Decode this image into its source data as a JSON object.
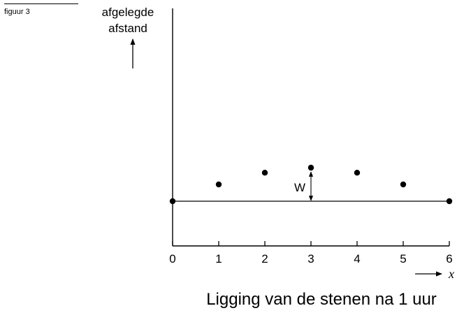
{
  "figure_label": "figuur 3",
  "chart_data": {
    "type": "scatter",
    "ylabel_lines": [
      "afgelegde",
      "afstand"
    ],
    "xlabel": "x",
    "x_ticks": [
      0,
      1,
      2,
      3,
      4,
      5,
      6
    ],
    "x_ticklabels": [
      "0",
      "1",
      "2",
      "3",
      "4",
      "5",
      "6"
    ],
    "xlim": [
      0,
      6
    ],
    "y_axis_ticks": "none",
    "grid": false,
    "baseline_points": [
      {
        "x": 0,
        "y": 0
      },
      {
        "x": 6,
        "y": 0
      }
    ],
    "points": [
      {
        "x": 1,
        "y": 0.5
      },
      {
        "x": 2,
        "y": 0.85
      },
      {
        "x": 3,
        "y": 1.0
      },
      {
        "x": 4,
        "y": 0.85
      },
      {
        "x": 5,
        "y": 0.5
      }
    ],
    "annotation": {
      "text": "W",
      "x": 3,
      "from_y": 0,
      "to_y": 1.0
    },
    "caption": "Ligging van de stenen na 1 uur"
  }
}
